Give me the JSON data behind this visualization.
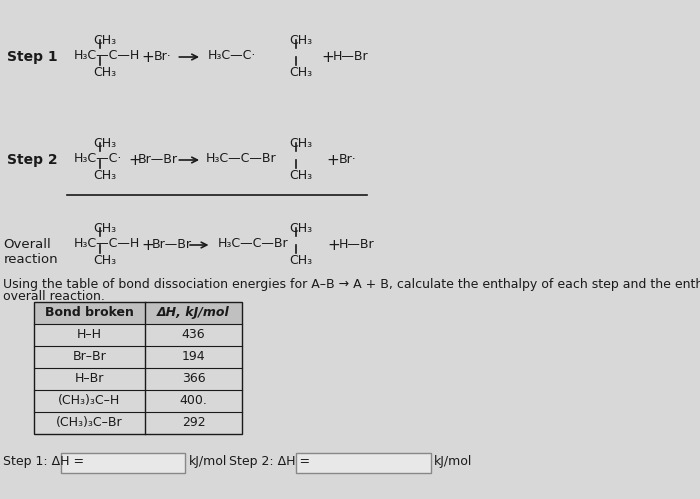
{
  "bg_color": "#d8d8d8",
  "text_color": "#1a1a1a",
  "title_font_size": 10,
  "body_font_size": 9,
  "step1_label": "Step 1",
  "step2_label": "Step 2",
  "overall_label": "Overall\nreaction",
  "table_header_col1": "Bond broken",
  "table_header_col2": "ΔH, kJ/mol",
  "table_bonds": [
    "H–H",
    "Br–Br",
    "H–Br",
    "(CH₃)₃C–H",
    "(CH₃)₃C–Br"
  ],
  "table_values": [
    "436",
    "194",
    "366",
    "400.",
    "292"
  ],
  "instruction_line1": "Using the table of bond dissociation energies for A–B → A + B, calculate the enthalpy of each step and the enthalpy of the",
  "instruction_line2": "overall reaction.",
  "step1_answer_label": "Step 1: ΔH =",
  "step2_answer_label": "Step 2: ΔH =",
  "kj_mol": "kJ/mol"
}
